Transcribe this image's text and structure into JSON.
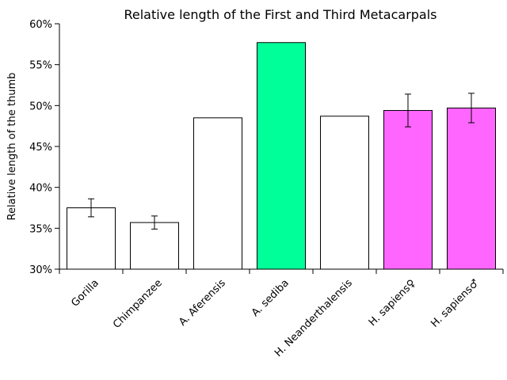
{
  "chart_data": {
    "type": "bar",
    "title": "Relative length of the First and Third Metacarpals",
    "xlabel": "",
    "ylabel": "Relative length of the thumb",
    "ylim": [
      30,
      60
    ],
    "yticks": [
      30,
      35,
      40,
      45,
      50,
      55,
      60
    ],
    "ytick_format": "percent",
    "grid": false,
    "legend": "none",
    "categories": [
      "Gorilla",
      "Chimpanzee",
      "A. Aferensis",
      "A. sediba",
      "H. Neanderthalensis",
      "H. sapiens♀",
      "H. sapiens♂"
    ],
    "values": [
      37.5,
      35.7,
      48.5,
      57.7,
      48.7,
      49.4,
      49.7
    ],
    "errors": [
      1.1,
      0.8,
      null,
      null,
      null,
      2.0,
      1.8
    ],
    "colors": [
      "#ffffff",
      "#ffffff",
      "#ffffff",
      "#00ff99",
      "#ffffff",
      "#ff66ff",
      "#ff66ff"
    ]
  }
}
